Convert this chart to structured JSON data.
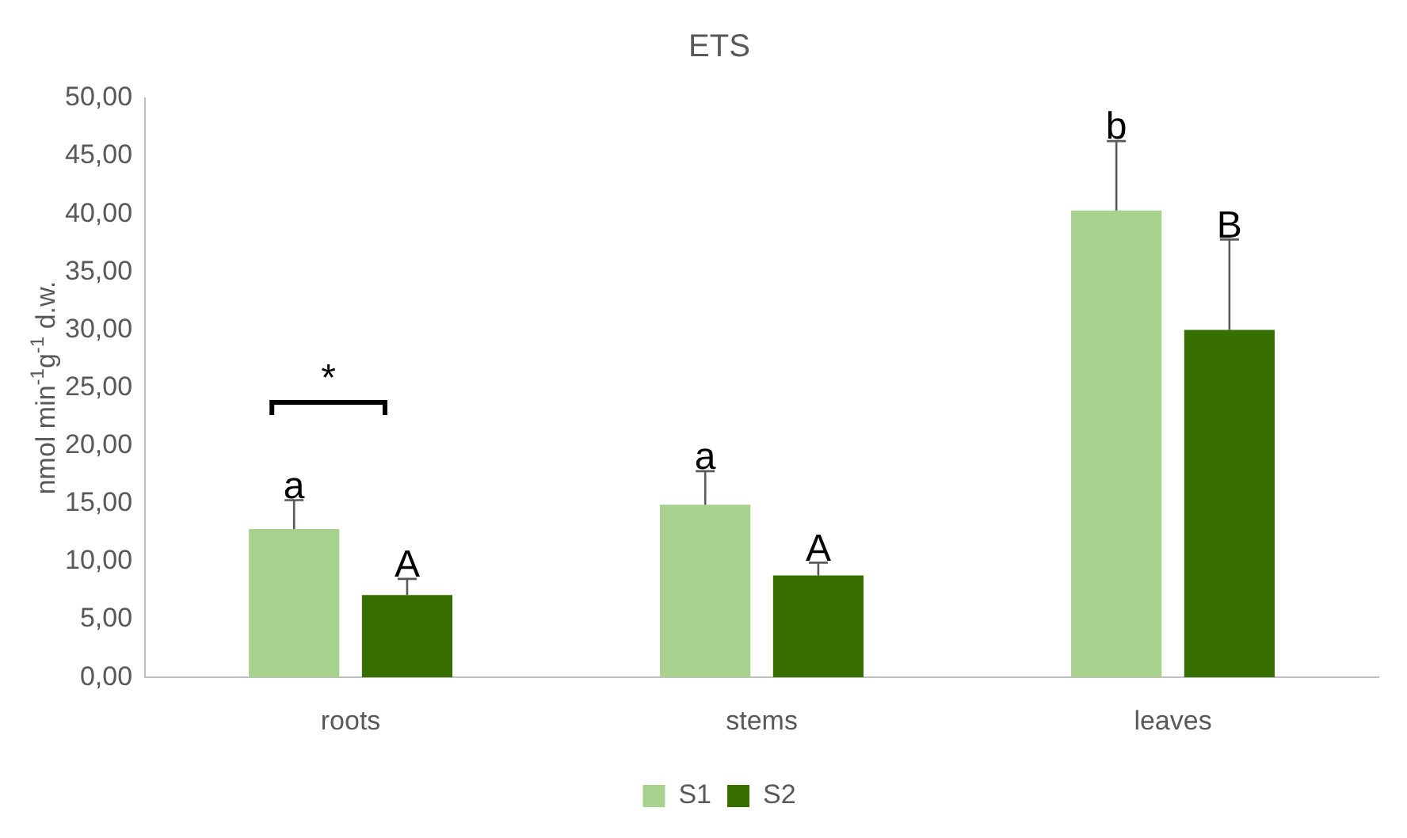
{
  "chart_data": {
    "type": "bar",
    "title": "ETS",
    "ylabel": "nmol min$^{-1}$g$^{-1}$ d.w.",
    "categories": [
      "roots",
      "stems",
      "leaves"
    ],
    "series": [
      {
        "name": "S1",
        "color": "#a9d18e",
        "values": [
          12.8,
          14.9,
          40.3
        ],
        "errors": [
          [
            12.8,
            15.3
          ],
          [
            14.9,
            17.8
          ],
          [
            40.3,
            46.3
          ]
        ],
        "value_labels": [
          "a",
          "a",
          "b"
        ]
      },
      {
        "name": "S2",
        "color": "#376e00",
        "values": [
          7.1,
          8.8,
          30.0
        ],
        "errors": [
          [
            7.1,
            8.5
          ],
          [
            8.8,
            9.9
          ],
          [
            30.0,
            37.8
          ]
        ],
        "value_labels": [
          "A",
          "A",
          "B"
        ]
      }
    ],
    "ylim": [
      0,
      50
    ],
    "yticks": [
      {
        "value": 0,
        "label": "0,00"
      },
      {
        "value": 5,
        "label": "5,00"
      },
      {
        "value": 10,
        "label": "10,00"
      },
      {
        "value": 15,
        "label": "15,00"
      },
      {
        "value": 20,
        "label": "20,00"
      },
      {
        "value": 25,
        "label": "25,00"
      },
      {
        "value": 30,
        "label": "30,00"
      },
      {
        "value": 35,
        "label": "35,00"
      },
      {
        "value": 40,
        "label": "40,00"
      },
      {
        "value": 45,
        "label": "45,00"
      },
      {
        "value": 50,
        "label": "50,00"
      }
    ],
    "annotations": [
      "*"
    ],
    "grid": false,
    "legend": "bottom"
  }
}
